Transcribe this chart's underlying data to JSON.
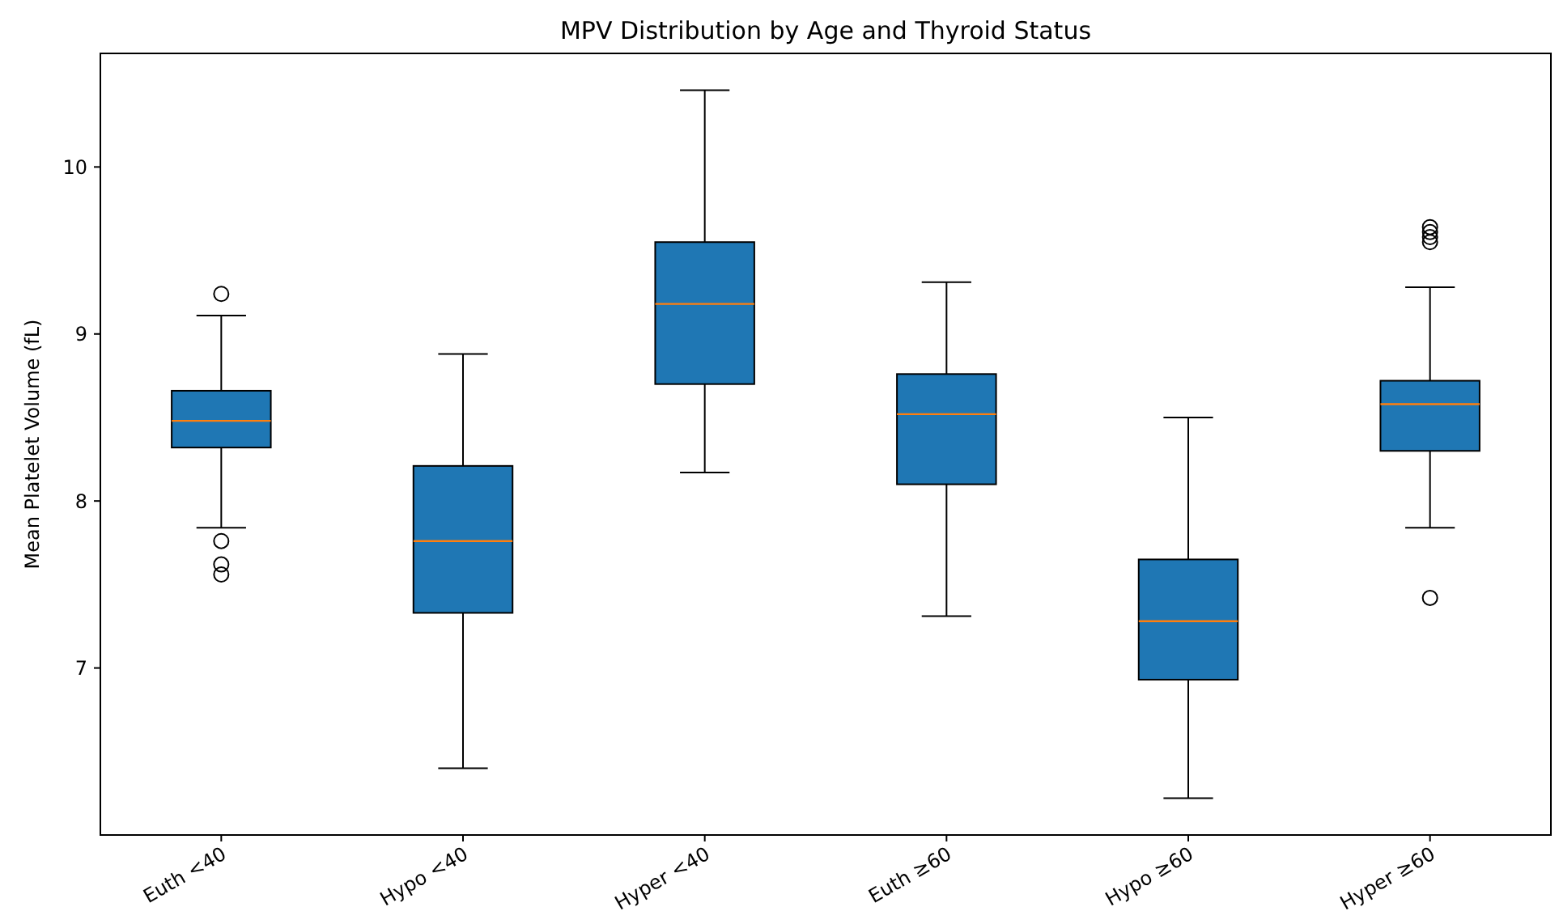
{
  "chart_data": {
    "type": "box",
    "title": "MPV Distribution by Age and Thyroid Status",
    "ylabel": "Mean Platelet Volume (fL)",
    "categories": [
      "Euth <40",
      "Hypo <40",
      "Hyper <40",
      "Euth ≥60",
      "Hypo ≥60",
      "Hyper ≥60"
    ],
    "color": "#1f77b4",
    "ylim": [
      6.0,
      10.68
    ],
    "yticks": [
      7,
      8,
      9,
      10
    ],
    "grid": false,
    "boxes": [
      {
        "low": 7.84,
        "q1": 8.32,
        "median": 8.48,
        "q3": 8.66,
        "high": 9.11,
        "outliers": [
          9.24,
          7.76,
          7.62,
          7.56
        ]
      },
      {
        "low": 6.4,
        "q1": 7.33,
        "median": 7.76,
        "q3": 8.21,
        "high": 8.88
      },
      {
        "low": 8.17,
        "q1": 8.7,
        "median": 9.18,
        "q3": 9.55,
        "high": 10.46
      },
      {
        "low": 7.31,
        "q1": 8.1,
        "median": 8.52,
        "q3": 8.76,
        "high": 9.31
      },
      {
        "low": 6.22,
        "q1": 6.93,
        "median": 7.28,
        "q3": 7.65,
        "high": 8.5
      },
      {
        "low": 7.84,
        "q1": 8.3,
        "median": 8.58,
        "q3": 8.72,
        "high": 9.28,
        "outliers": [
          9.64,
          9.61,
          9.58,
          9.55,
          7.42
        ]
      }
    ]
  }
}
